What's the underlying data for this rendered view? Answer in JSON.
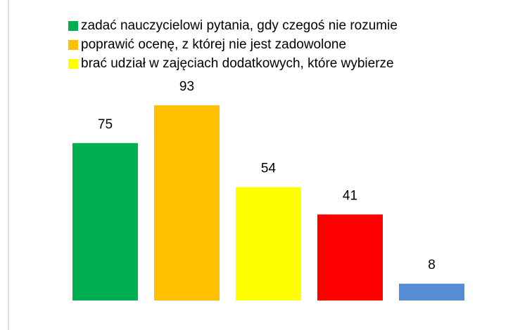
{
  "chart_data": {
    "type": "bar",
    "series": [
      {
        "name": "zadać nauczycielowi pytania, gdy czegoś nie rozumie",
        "color": "#00b050",
        "values": [
          75
        ]
      },
      {
        "name": "poprawić ocenę, z której nie jest zadowolone",
        "color": "#ffc000",
        "values": [
          93
        ]
      },
      {
        "name": "brać udział w zajęciach dodatkowych, które wybierze",
        "color": "#ffff00",
        "values": [
          54
        ]
      },
      {
        "color": "#ff0000",
        "values": [
          41
        ]
      },
      {
        "color": "#558ed5",
        "values": [
          8
        ]
      }
    ],
    "ylim": [
      0,
      100
    ]
  }
}
